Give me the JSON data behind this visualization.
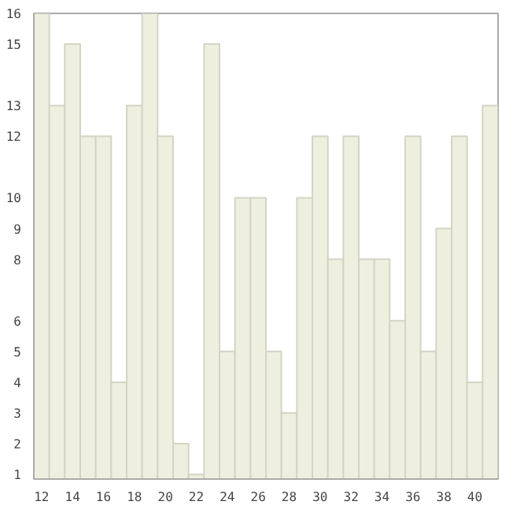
{
  "chart_data": {
    "type": "bar",
    "x": [
      12,
      13,
      14,
      15,
      16,
      17,
      18,
      19,
      20,
      21,
      22,
      23,
      24,
      25,
      26,
      27,
      28,
      29,
      30,
      31,
      32,
      33,
      34,
      35,
      36,
      37,
      38,
      39,
      40,
      41
    ],
    "values": [
      16,
      13,
      15,
      12,
      12,
      4,
      13,
      16,
      12,
      2,
      1,
      15,
      5,
      10,
      10,
      5,
      3,
      10,
      12,
      8,
      12,
      8,
      8,
      6,
      12,
      5,
      9,
      12,
      4,
      13
    ],
    "color": "#efefe0",
    "xlim": [
      11.5,
      41.5
    ],
    "ylim": [
      0.85,
      16
    ],
    "xticks": [
      12,
      14,
      16,
      18,
      20,
      22,
      24,
      26,
      28,
      30,
      32,
      34,
      36,
      38,
      40
    ],
    "yticks": [
      1,
      2,
      3,
      4,
      5,
      6,
      8,
      9,
      10,
      12,
      13,
      15,
      16
    ],
    "grid": false
  }
}
